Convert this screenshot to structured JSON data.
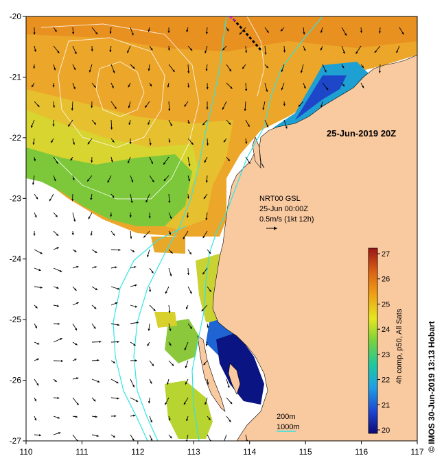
{
  "map": {
    "date_label": "25-Jun-2019 20Z",
    "current_info": {
      "line1": "NRT00 GSL",
      "line2": "25-Jun 00:00Z",
      "line3": "0.5m/s (1kt 12h)"
    },
    "colorbar": {
      "label": "4h comp, p50, All Sats",
      "ticks": [
        "20",
        "21",
        "22",
        "23",
        "24",
        "25",
        "26",
        "27"
      ]
    },
    "depth_legend": {
      "shallow": "200m",
      "deep": "1000m"
    },
    "credit": "© IMOS 30-Jun-2019 13:13 Hobart",
    "x_ticks": [
      "110",
      "111",
      "112",
      "113",
      "114",
      "115",
      "116",
      "117"
    ],
    "y_ticks": [
      "-20",
      "-21",
      "-22",
      "-23",
      "-24",
      "-25",
      "-26",
      "-27"
    ],
    "colors": {
      "land": "#f9c9a0",
      "no_data": "#ffffff",
      "isobath_200": "#2ee6e6",
      "isobath_1000": "#2ee6e6",
      "sst_contour": "#ffffff",
      "vector": "#000000"
    }
  }
}
